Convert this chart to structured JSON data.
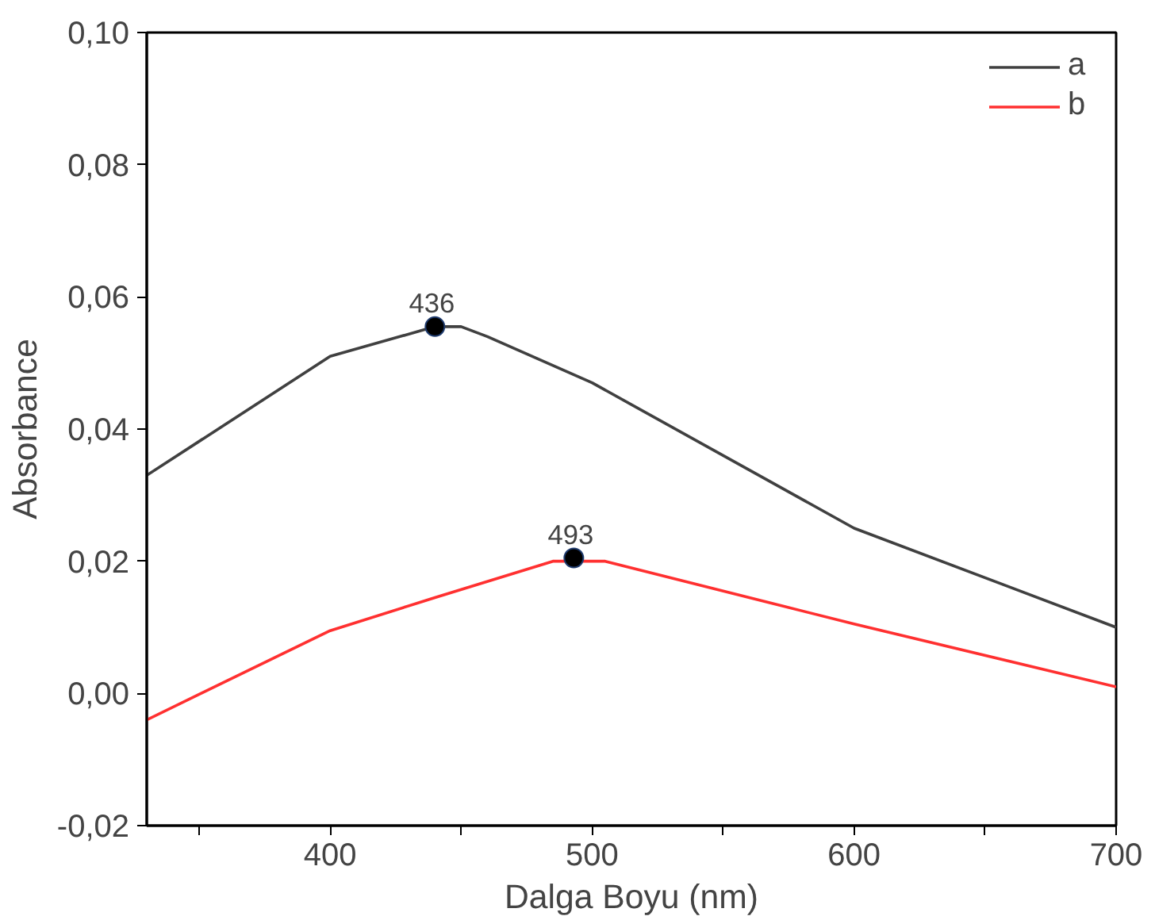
{
  "chart_data": {
    "type": "line",
    "xlabel": "Dalga Boyu (nm)",
    "ylabel": "Absorbance",
    "series": [
      {
        "name": "a",
        "color": "#404040",
        "x": [
          330,
          400,
          440,
          450,
          460,
          500,
          600,
          700
        ],
        "values": [
          0.033,
          0.051,
          0.0555,
          0.0555,
          0.054,
          0.047,
          0.025,
          0.01
        ]
      },
      {
        "name": "b",
        "color": "#ff3030",
        "x": [
          330,
          400,
          440,
          485,
          505,
          600,
          700
        ],
        "values": [
          -0.004,
          0.0095,
          0.0145,
          0.02,
          0.02,
          0.0105,
          0.001
        ]
      }
    ],
    "annotations": [
      {
        "text": "436",
        "x": 440,
        "y": 0.0555
      },
      {
        "text": "493",
        "x": 493,
        "y": 0.0205
      }
    ],
    "xlim": [
      330,
      700
    ],
    "ylim": [
      -0.02,
      0.1
    ],
    "xticks": [
      {
        "value": 350,
        "label": null
      },
      400,
      {
        "value": 450,
        "label": null
      },
      500,
      {
        "value": 550,
        "label": null
      },
      600,
      {
        "value": 650,
        "label": null
      },
      700
    ],
    "yticks": [
      {
        "value": -0.02,
        "label": "-0,02"
      },
      {
        "value": 0,
        "label": "0,00"
      },
      {
        "value": 0.02,
        "label": "0,02"
      },
      {
        "value": 0.04,
        "label": "0,04"
      },
      {
        "value": 0.06,
        "label": "0,06"
      },
      {
        "value": 0.08,
        "label": "0,08"
      },
      {
        "value": 0.1,
        "label": "0,10"
      }
    ],
    "grid": false,
    "legend": "top right",
    "marker": "none",
    "line_style": "solid"
  }
}
